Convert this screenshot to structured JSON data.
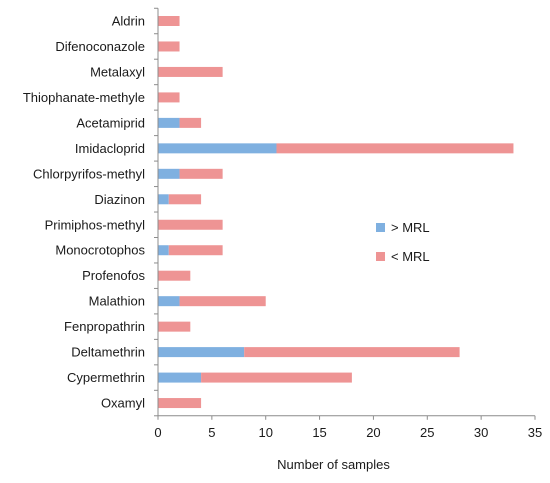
{
  "chart_data": {
    "type": "bar",
    "orientation": "horizontal",
    "stacked": true,
    "categories": [
      "Aldrin",
      "Difenoconazole",
      "Metalaxyl",
      "Thiophanate-methyle",
      "Acetamiprid",
      "Imidacloprid",
      "Chlorpyrifos-methyl",
      "Diazinon",
      "Primiphos-methyl",
      "Monocrotophos",
      "Profenofos",
      "Malathion",
      "Fenpropathrin",
      "Deltamethrin",
      "Cypermethrin",
      "Oxamyl"
    ],
    "series": [
      {
        "name": "> MRL",
        "color": "#7fb0e0",
        "values": [
          0,
          0,
          0,
          0,
          2,
          11,
          2,
          1,
          0,
          1,
          0,
          2,
          0,
          8,
          4,
          0
        ]
      },
      {
        "name": "< MRL",
        "color": "#ee9494",
        "values": [
          2,
          2,
          6,
          2,
          2,
          22,
          4,
          3,
          6,
          5,
          3,
          8,
          3,
          20,
          14,
          4
        ]
      }
    ],
    "xlabel": "Number of samples",
    "xlim": [
      0,
      35
    ],
    "xticks": [
      0,
      5,
      10,
      15,
      20,
      25,
      30,
      35
    ],
    "grid": false,
    "legend_position": "right"
  }
}
